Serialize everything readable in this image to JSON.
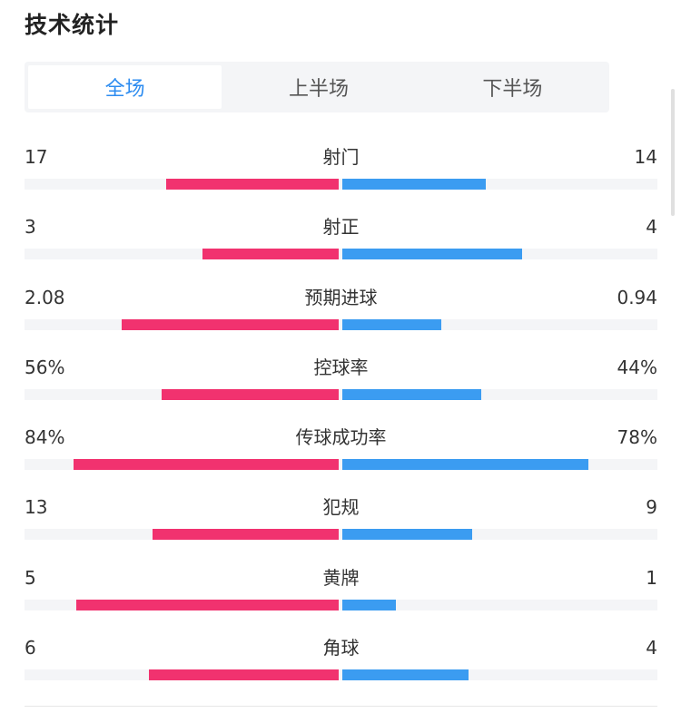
{
  "title": "技术统计",
  "tabs": [
    {
      "label": "全场",
      "active": true
    },
    {
      "label": "上半场",
      "active": false
    },
    {
      "label": "下半场",
      "active": false
    }
  ],
  "colors": {
    "home": "#f1326f",
    "away": "#3b9cf1",
    "active_tab": "#2d8cf0"
  },
  "stats": [
    {
      "label": "射门",
      "home": "17",
      "away": "14",
      "home_share": 0.546,
      "away_share": 0.454
    },
    {
      "label": "射正",
      "home": "3",
      "away": "4",
      "home_share": 0.43,
      "away_share": 0.57
    },
    {
      "label": "预期进球",
      "home": "2.08",
      "away": "0.94",
      "home_share": 0.687,
      "away_share": 0.313
    },
    {
      "label": "控球率",
      "home": "56%",
      "away": "44%",
      "home_share": 0.56,
      "away_share": 0.44
    },
    {
      "label": "传球成功率",
      "home": "84%",
      "away": "78%",
      "home_share": 0.84,
      "away_share": 0.78
    },
    {
      "label": "犯规",
      "home": "13",
      "away": "9",
      "home_share": 0.59,
      "away_share": 0.41
    },
    {
      "label": "黄牌",
      "home": "5",
      "away": "1",
      "home_share": 0.83,
      "away_share": 0.17
    },
    {
      "label": "角球",
      "home": "6",
      "away": "4",
      "home_share": 0.6,
      "away_share": 0.4
    }
  ]
}
